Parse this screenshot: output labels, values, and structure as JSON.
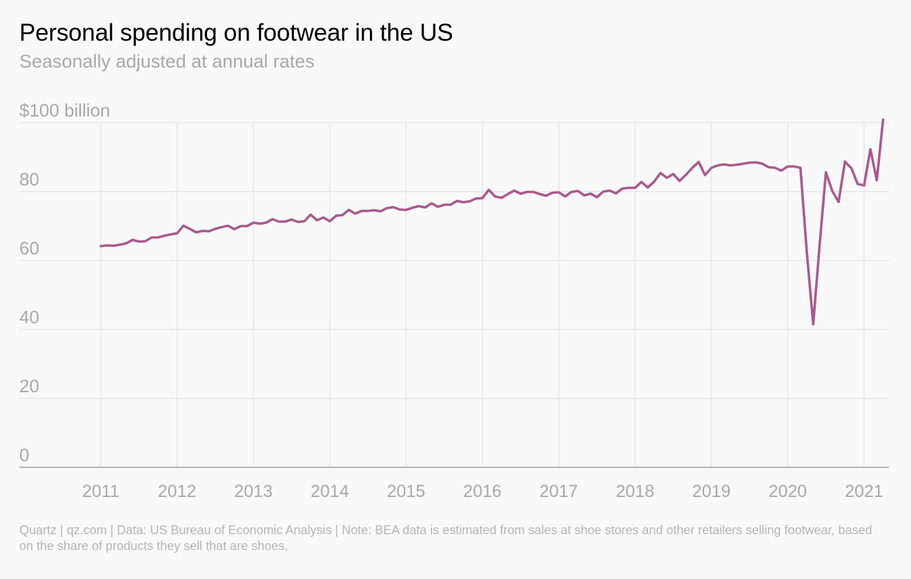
{
  "chart_data": {
    "type": "line",
    "title": "Personal spending on footwear in the US",
    "subtitle": "Seasonally adjusted at annual rates",
    "ylabel": "$100 billion",
    "xlabel": "",
    "ylim": [
      0,
      100
    ],
    "xlim": [
      2010.0,
      2021.35
    ],
    "yticks": [
      0,
      20,
      40,
      60,
      80,
      100
    ],
    "ytick_labels": [
      "0",
      "20",
      "40",
      "60",
      "80",
      "$100 billion"
    ],
    "xticks": [
      "2011",
      "2012",
      "2013",
      "2014",
      "2015",
      "2016",
      "2017",
      "2018",
      "2019",
      "2020",
      "2021"
    ],
    "grid": true,
    "line_color": "#a95b8b",
    "series": [
      {
        "values": [
          64.2,
          64.4,
          64.3,
          64.6,
          65.0,
          66.0,
          65.5,
          65.6,
          66.7,
          66.7,
          67.2,
          67.6,
          67.9,
          70.1,
          69.2,
          68.2,
          68.6,
          68.5,
          69.2,
          69.7,
          70.1,
          69.1,
          70.0,
          70.0,
          71.0,
          70.7,
          71.0,
          72.0,
          71.3,
          71.3,
          71.9,
          71.2,
          71.4,
          73.3,
          71.7,
          72.5,
          71.4,
          73.0,
          73.2,
          74.7,
          73.6,
          74.4,
          74.4,
          74.6,
          74.3,
          75.2,
          75.5,
          74.8,
          74.7,
          75.3,
          75.8,
          75.4,
          76.6,
          75.6,
          76.2,
          76.2,
          77.3,
          76.9,
          77.2,
          78.0,
          78.1,
          80.5,
          78.6,
          78.2,
          79.3,
          80.3,
          79.4,
          79.9,
          79.9,
          79.3,
          78.8,
          79.7,
          79.8,
          78.6,
          79.9,
          80.2,
          78.9,
          79.4,
          78.4,
          80.0,
          80.3,
          79.5,
          80.9,
          81.1,
          81.1,
          82.8,
          81.2,
          82.9,
          85.4,
          84.0,
          85.1,
          83.1,
          84.9,
          86.9,
          88.6,
          84.8,
          86.9,
          87.6,
          87.9,
          87.6,
          87.8,
          88.1,
          88.4,
          88.5,
          88.1,
          87.1,
          86.9,
          86.1,
          87.3,
          87.3,
          86.9,
          62.5,
          41.5,
          64.3,
          85.6,
          80.2,
          77.0,
          88.7,
          86.8,
          82.2,
          81.8,
          92.3,
          83.3,
          100.9
        ]
      }
    ],
    "x_start_year": 2011.0,
    "x_step": 0.0833333
  },
  "footer": {
    "source": "Quartz | qz.com | Data: US Bureau of Economic Analysis | Note: BEA data is estimated from sales at shoe stores and other retailers selling footwear, based on the share of products they sell that are shoes."
  }
}
